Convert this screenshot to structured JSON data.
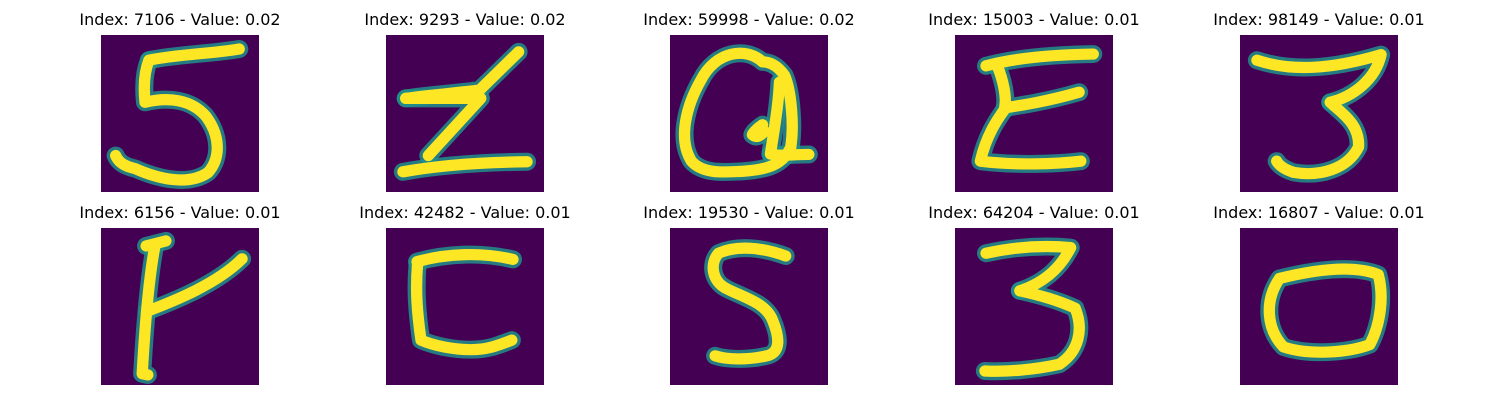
{
  "colors": {
    "background": "#440154",
    "stroke_mid": "#21918c",
    "stroke_core": "#fde725",
    "title_text": "#000000"
  },
  "grid": {
    "rows": 2,
    "columns": 5,
    "image_colormap": "viridis"
  },
  "panels": [
    {
      "title": "Index: 7106 - Value: 0.02",
      "glyph": "5"
    },
    {
      "title": "Index: 9293 - Value: 0.02",
      "glyph": "Z"
    },
    {
      "title": "Index: 59998 - Value: 0.02",
      "glyph": "Q"
    },
    {
      "title": "Index: 15003 - Value: 0.01",
      "glyph": "E"
    },
    {
      "title": "Index: 98149 - Value: 0.01",
      "glyph": "3"
    },
    {
      "title": "Index: 6156 - Value: 0.01",
      "glyph": "K"
    },
    {
      "title": "Index: 42482 - Value: 0.01",
      "glyph": "C"
    },
    {
      "title": "Index: 19530 - Value: 0.01",
      "glyph": "S"
    },
    {
      "title": "Index: 64204 - Value: 0.01",
      "glyph": "3"
    },
    {
      "title": "Index: 16807 - Value: 0.01",
      "glyph": "O"
    }
  ]
}
